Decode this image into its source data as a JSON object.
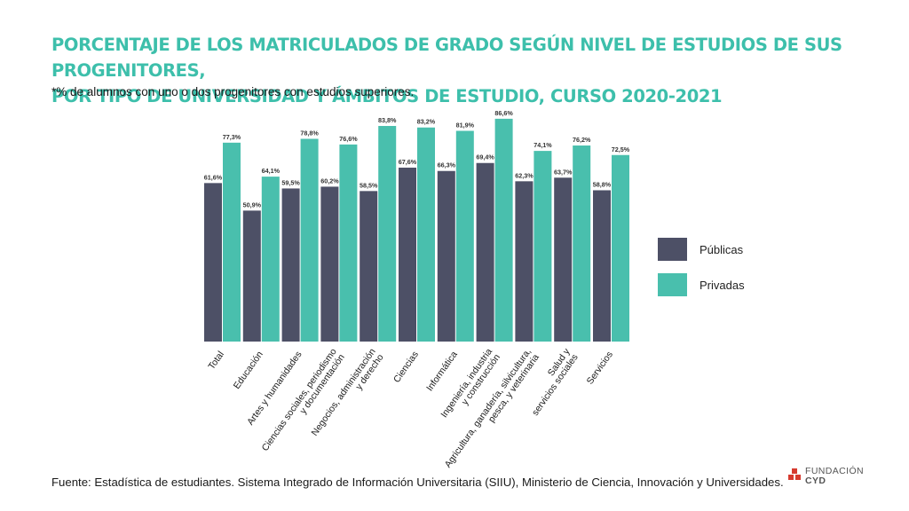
{
  "title_lines": [
    "PORCENTAJE DE LOS MATRICULADOS DE GRADO SEGÚN NIVEL DE ESTUDIOS DE SUS PROGENITORES,",
    "POR TIPO DE UNIVERSIDAD Y ÁMBITOS DE ESTUDIO, CURSO 2020-2021"
  ],
  "subtitle": "*% de alumnos con uno o dos progenitores con estudios superiores.",
  "source": "Fuente: Estadística de estudiantes. Sistema Integrado de Información Universitaria (SIIU), Ministerio de Ciencia, Innovación y Universidades.",
  "logo": {
    "line1": "FUNDACIÓN",
    "line2": "CYD"
  },
  "colors": {
    "title": "#3dbfab",
    "publicas": "#4d5066",
    "privadas": "#49bfad"
  },
  "chart_data": {
    "type": "bar",
    "title": "PORCENTAJE DE LOS MATRICULADOS DE GRADO SEGÚN NIVEL DE ESTUDIOS DE SUS PROGENITORES, POR TIPO DE UNIVERSIDAD Y ÁMBITOS DE ESTUDIO, CURSO 2020-2021",
    "subtitle": "*% de alumnos con uno o dos progenitores con estudios superiores.",
    "categories": [
      [
        "Total"
      ],
      [
        "Educación"
      ],
      [
        "Artes y humanidades"
      ],
      [
        "Ciencias sociales, periodismo",
        "y documentación"
      ],
      [
        "Negocios, administración",
        "y derecho"
      ],
      [
        "Ciencias"
      ],
      [
        "Informática"
      ],
      [
        "Ingeniería, industria",
        "y construcción"
      ],
      [
        "Agricultura, ganadería, silvicultura,",
        "pesca, y veterinaria"
      ],
      [
        "Salud y",
        "servicios sociales"
      ],
      [
        "Servicios"
      ]
    ],
    "series": [
      {
        "name": "Públicas",
        "values": [
          61.6,
          50.9,
          59.5,
          60.2,
          58.5,
          67.6,
          66.3,
          69.4,
          62.3,
          63.7,
          58.8
        ],
        "labels": [
          "61,6%",
          "50,9%",
          "59,5%",
          "60,2%",
          "58,5%",
          "67,6%",
          "66,3%",
          "69,4%",
          "62,3%",
          "63,7%",
          "58,8%"
        ]
      },
      {
        "name": "Privadas",
        "values": [
          77.3,
          64.1,
          78.8,
          76.6,
          83.8,
          83.2,
          81.9,
          86.6,
          74.1,
          76.2,
          72.5
        ],
        "labels": [
          "77,3%",
          "64,1%",
          "78,8%",
          "76,6%",
          "83,8%",
          "83,2%",
          "81,9%",
          "86,6%",
          "74,1%",
          "76,2%",
          "72,5%"
        ]
      }
    ],
    "ylim": [
      0,
      100
    ],
    "grid": false,
    "legend": "right"
  }
}
